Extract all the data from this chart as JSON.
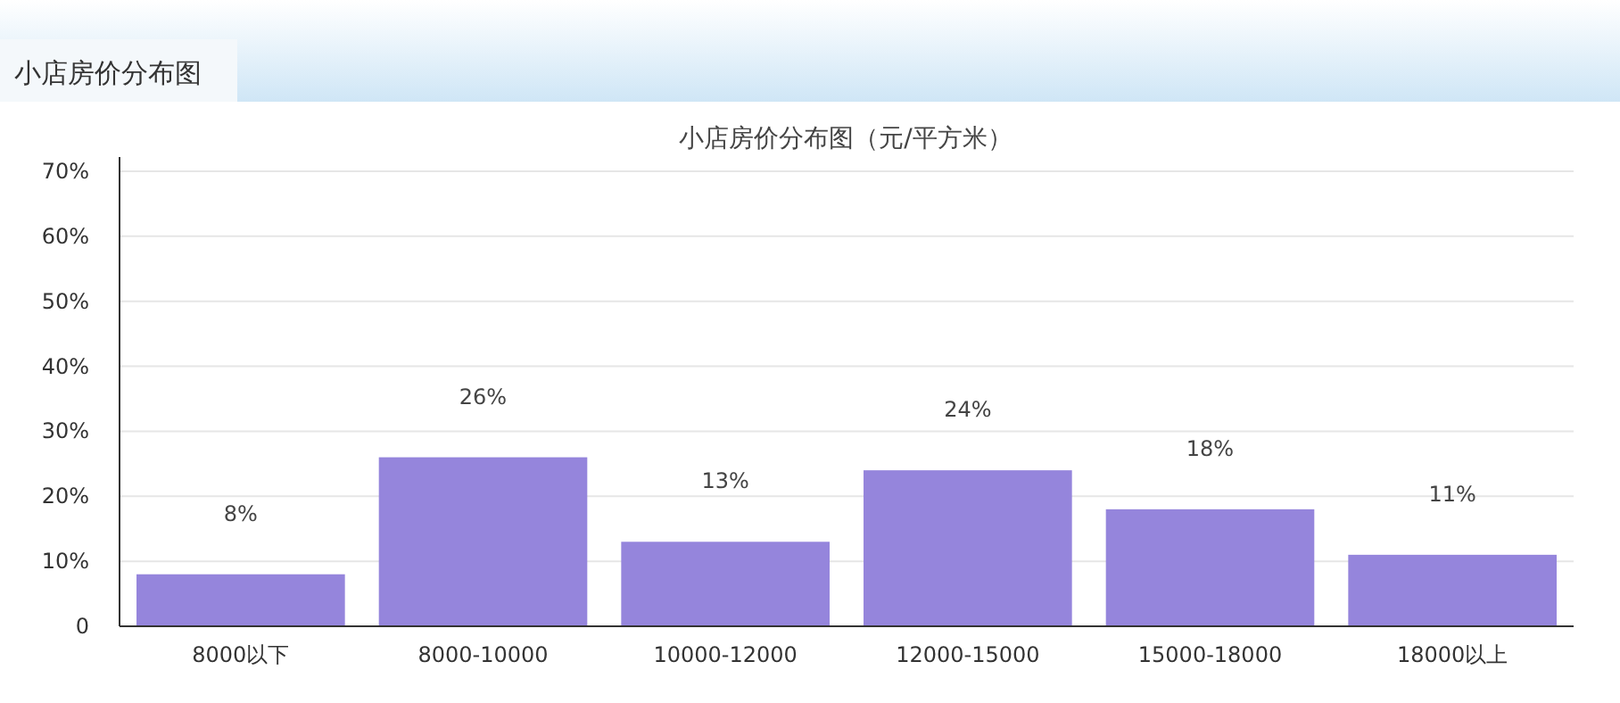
{
  "chart_data": {
    "type": "bar",
    "title": "小店房价分布图（元/平方米）",
    "annotations": [
      "小店房价分布图"
    ],
    "categories": [
      "8000以下",
      "8000-10000",
      "10000-12000",
      "12000-15000",
      "15000-18000",
      "18000以上"
    ],
    "values": [
      8,
      26,
      13,
      24,
      18,
      11
    ],
    "value_labels": [
      "8%",
      "26%",
      "13%",
      "24%",
      "18%",
      "11%"
    ],
    "color": "#9585dc",
    "ylim": [
      0,
      70
    ],
    "yticks": [
      0,
      {
        "value": 10,
        "label": "10%"
      },
      {
        "value": 20,
        "label": "20%"
      },
      {
        "value": 30,
        "label": "30%"
      },
      {
        "value": 40,
        "label": "40%"
      },
      {
        "value": 50,
        "label": "50%"
      },
      {
        "value": 60,
        "label": "60%"
      },
      {
        "value": 70,
        "label": "70%"
      }
    ],
    "grid": "y"
  }
}
